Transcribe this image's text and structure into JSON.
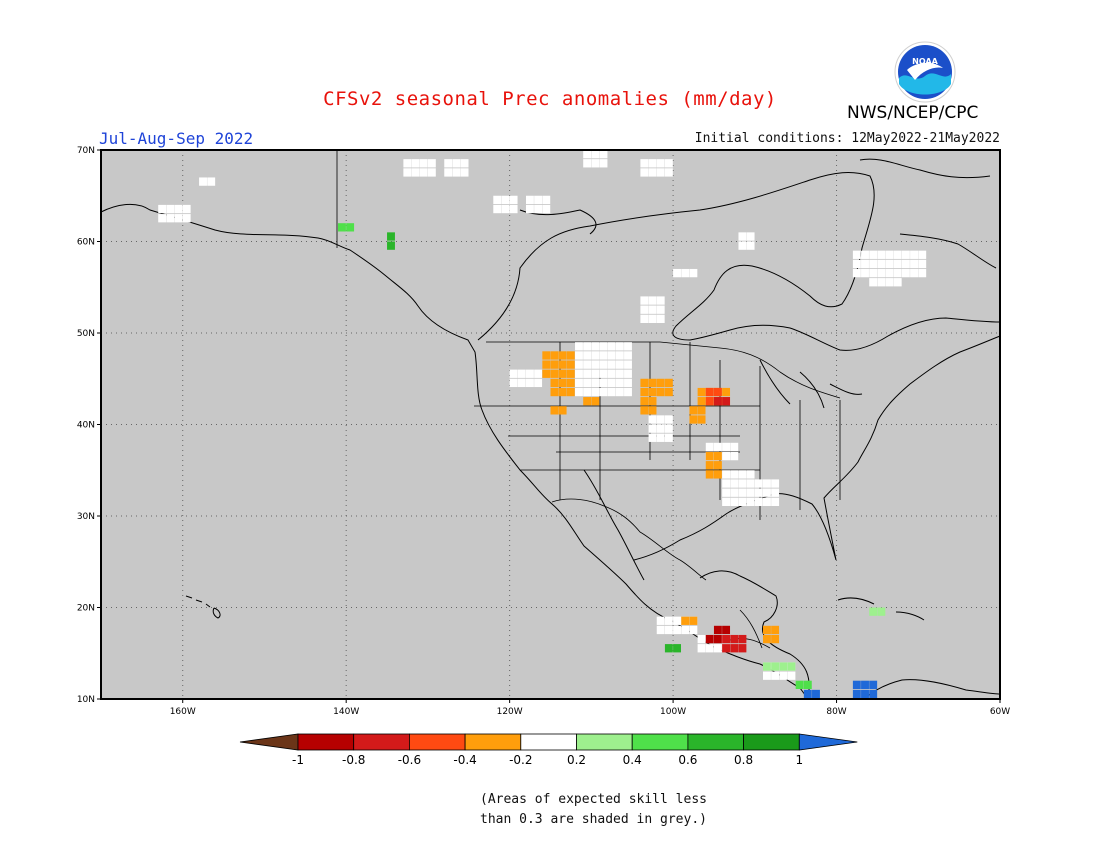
{
  "title": "CFSv2 seasonal Prec anomalies (mm/day)",
  "season": "Jul-Aug-Sep 2022",
  "initial_conditions": "Initial conditions: 12May2022-21May2022",
  "agency": "NWS/NCEP/CPC",
  "logo_text": "NOAA",
  "map": {
    "lon_range": [
      -170,
      -60
    ],
    "lat_range": [
      10,
      70
    ],
    "lat_labels": [
      "70N",
      "60N",
      "50N",
      "40N",
      "30N",
      "20N",
      "10N"
    ],
    "lon_labels": [
      "160W",
      "140W",
      "120W",
      "100W",
      "80W",
      "60W"
    ],
    "masked_color": "#c8c8c8"
  },
  "colorbar": {
    "labels": [
      "-1",
      "-0.8",
      "-0.6",
      "-0.4",
      "-0.2",
      "0.2",
      "0.4",
      "0.6",
      "0.8",
      "1"
    ],
    "colors": [
      "#6b3518",
      "#b60000",
      "#d31a1a",
      "#ff4a12",
      "#ff9e0c",
      "#ffffff",
      "#9ef08e",
      "#4fe04a",
      "#2ab52a",
      "#1a9a1a",
      "#1f69d8"
    ]
  },
  "note_line1": "(Areas of expected skill less",
  "note_line2": "than 0.3 are shaded in grey.)"
}
